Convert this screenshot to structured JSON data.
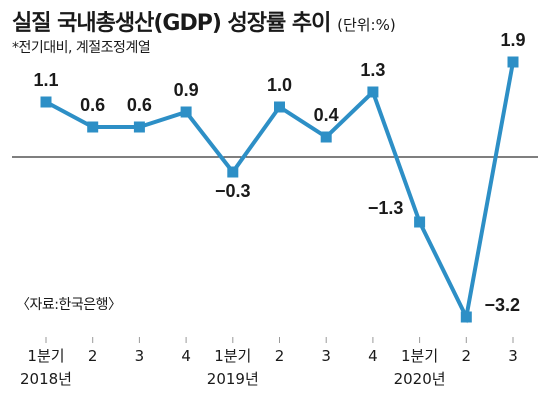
{
  "title": "실질 국내총생산(GDP) 성장률 추이",
  "unit": "(단위:%)",
  "subtitle": "*전기대비, 계절조정계열",
  "source": "〈자료:한국은행〉",
  "colors": {
    "line": "#2d8fc6",
    "marker": "#2d8fc6",
    "axis": "#333333",
    "gridline": "#9a9a9a"
  },
  "chart_data": {
    "type": "line",
    "title": "실질 국내총생산(GDP) 성장률 추이",
    "unit": "%",
    "categories": [
      "1분기",
      "2",
      "3",
      "4",
      "1분기",
      "2",
      "3",
      "4",
      "1분기",
      "2",
      "3"
    ],
    "years": [
      {
        "label": "2018년",
        "start_index": 0
      },
      {
        "label": "2019년",
        "start_index": 4
      },
      {
        "label": "2020년",
        "start_index": 8
      }
    ],
    "series": [
      {
        "values": [
          1.1,
          0.6,
          0.6,
          0.9,
          -0.3,
          1.0,
          0.4,
          1.3,
          -1.3,
          -3.2,
          1.9
        ],
        "labels": [
          "1.1",
          "0.6",
          "0.6",
          "0.9",
          "−0.3",
          "1.0",
          "0.4",
          "1.3",
          "−1.3",
          "−3.2",
          "1.9"
        ]
      }
    ],
    "ylim": [
      -3.4,
      2.4
    ],
    "grid": false,
    "zero_line": true
  }
}
